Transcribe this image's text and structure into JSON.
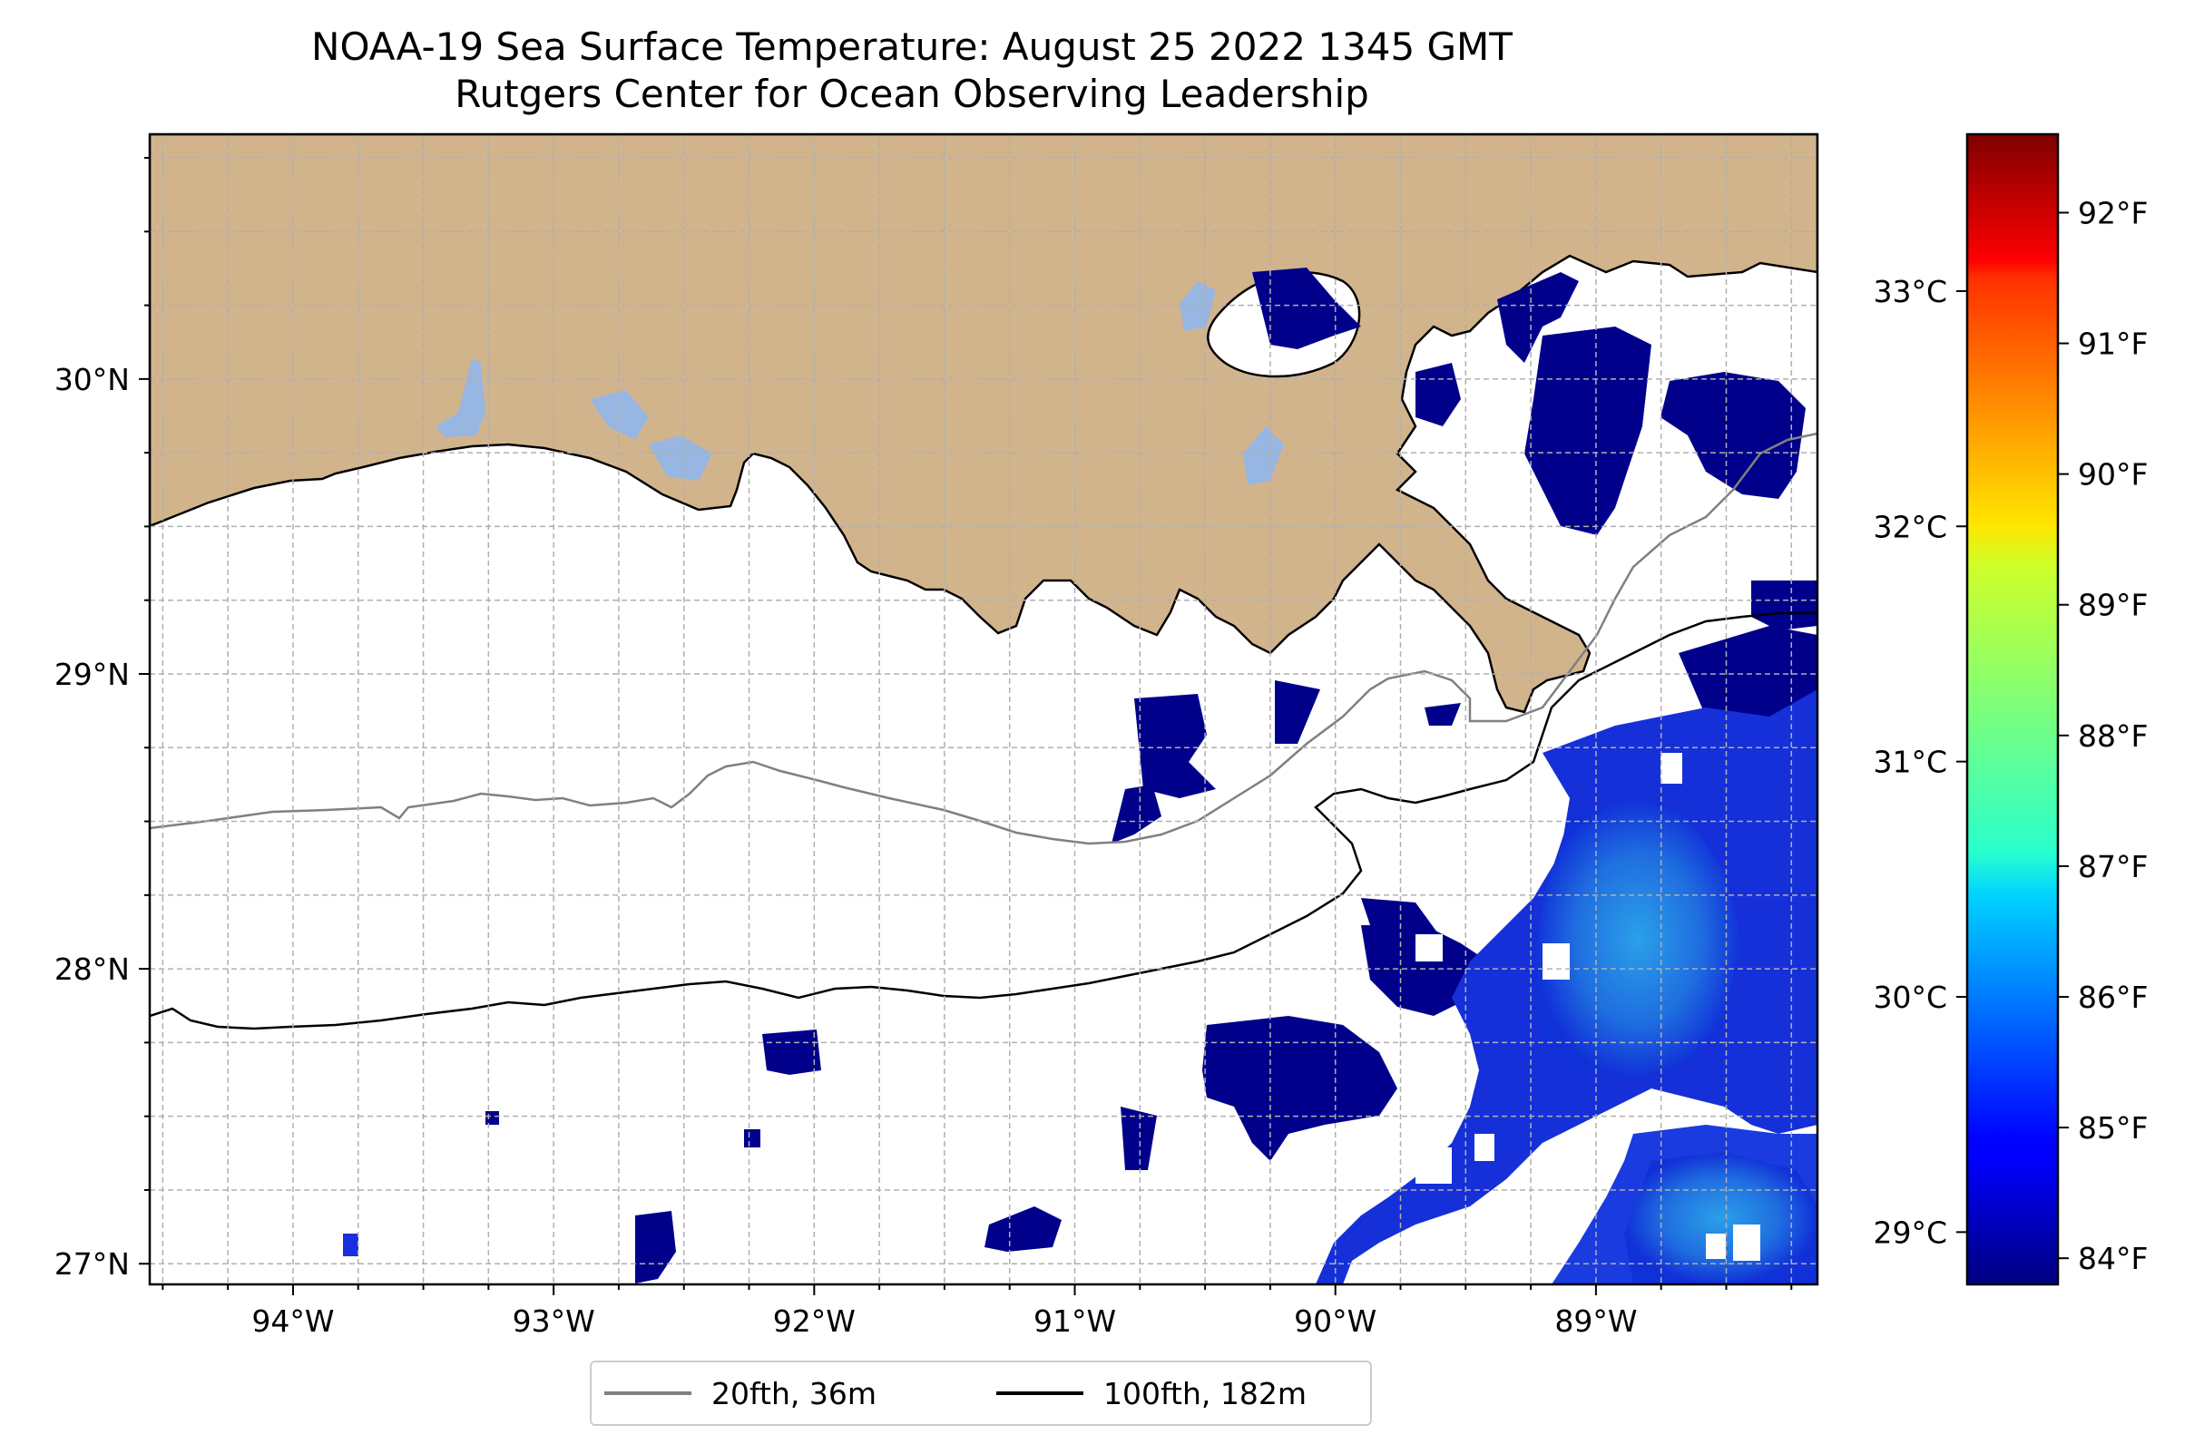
{
  "title": {
    "line1": "NOAA-19 Sea Surface Temperature: August 25 2022 1345 GMT",
    "line2": "Rutgers Center for Ocean Observing Leadership"
  },
  "map": {
    "lon_range": [
      -94.55,
      -88.15
    ],
    "lat_range": [
      26.93,
      30.83
    ],
    "lon_ticks": [
      {
        "value": -94,
        "label": "94°W"
      },
      {
        "value": -93,
        "label": "93°W"
      },
      {
        "value": -92,
        "label": "92°W"
      },
      {
        "value": -91,
        "label": "91°W"
      },
      {
        "value": -90,
        "label": "90°W"
      },
      {
        "value": -89,
        "label": "89°W"
      }
    ],
    "lat_ticks": [
      {
        "value": 30,
        "label": "30°N"
      },
      {
        "value": 29,
        "label": "29°N"
      },
      {
        "value": 28,
        "label": "28°N"
      },
      {
        "value": 27,
        "label": "27°N"
      }
    ],
    "gridlines": "dashed",
    "colors": {
      "land": "#d2b48c",
      "lakes": "#97b6e1",
      "ocean_nodata": "#ffffff",
      "coastline": "#000000",
      "sst_cold": "#00008b",
      "sst_blue": "#1f3fe0",
      "sst_light": "#2a8ae0"
    }
  },
  "colorbar": {
    "celsius_ticks": [
      {
        "value": 29,
        "label": "29°C"
      },
      {
        "value": 30,
        "label": "30°C"
      },
      {
        "value": 31,
        "label": "31°C"
      },
      {
        "value": 32,
        "label": "32°C"
      },
      {
        "value": 33,
        "label": "33°C"
      }
    ],
    "fahrenheit_ticks": [
      {
        "value": 84,
        "label": "84°F"
      },
      {
        "value": 85,
        "label": "85°F"
      },
      {
        "value": 86,
        "label": "86°F"
      },
      {
        "value": 87,
        "label": "87°F"
      },
      {
        "value": 88,
        "label": "88°F"
      },
      {
        "value": 89,
        "label": "89°F"
      },
      {
        "value": 90,
        "label": "90°F"
      },
      {
        "value": 91,
        "label": "91°F"
      },
      {
        "value": 92,
        "label": "92°F"
      }
    ],
    "range_f": [
      83.8,
      92.6
    ],
    "colormap": "jet"
  },
  "legend": {
    "items": [
      {
        "label": "20fth, 36m",
        "color": "#808080"
      },
      {
        "label": "100fth, 182m",
        "color": "#000000"
      }
    ]
  }
}
